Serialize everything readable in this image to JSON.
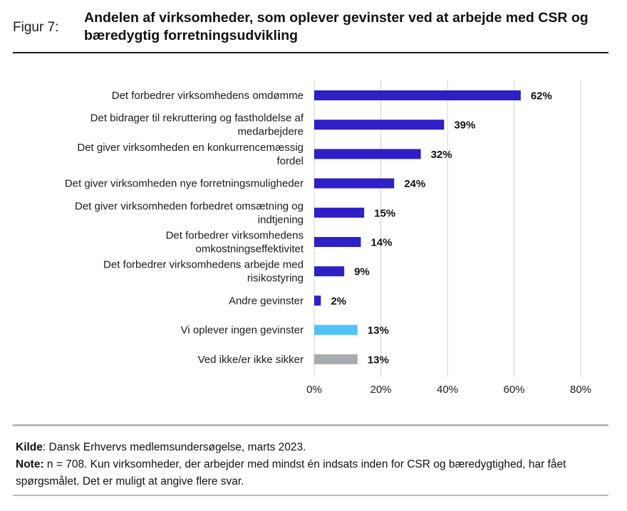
{
  "figure": {
    "label": "Figur 7:",
    "title": "Andelen af virksomheder, som oplever gevinster ved at arbejde med CSR og bæredygtig forretningsudvikling"
  },
  "chart_data": {
    "type": "bar",
    "orientation": "horizontal",
    "categories": [
      [
        "Det forbedrer virksomhedens omdømme"
      ],
      [
        "Det bidrager til rekruttering og fastholdelse af",
        "medarbejdere"
      ],
      [
        "Det giver virksomheden en konkurrencemæssig",
        "fordel"
      ],
      [
        "Det giver virksomheden nye forretningsmuligheder"
      ],
      [
        "Det giver virksomheden forbedret omsætning og",
        "indtjening"
      ],
      [
        "Det forbedrer virksomhedens",
        "omkostningseffektivitet"
      ],
      [
        "Det forbedrer virksomhedens arbejde med",
        "risikostyring"
      ],
      [
        "Andre gevinster"
      ],
      [
        "Vi oplever ingen gevinster"
      ],
      [
        "Ved ikke/er ikke sikker"
      ]
    ],
    "values": [
      62,
      39,
      32,
      24,
      15,
      14,
      9,
      2,
      13,
      13
    ],
    "value_labels": [
      "62%",
      "39%",
      "32%",
      "24%",
      "15%",
      "14%",
      "9%",
      "2%",
      "13%",
      "13%"
    ],
    "colors": [
      "#2e1fc6",
      "#2e1fc6",
      "#2e1fc6",
      "#2e1fc6",
      "#2e1fc6",
      "#2e1fc6",
      "#2e1fc6",
      "#2e1fc6",
      "#4fc3f7",
      "#a7abae"
    ],
    "xlim": [
      0,
      80
    ],
    "xticks": [
      0,
      20,
      40,
      60,
      80
    ],
    "xtick_labels": [
      "0%",
      "20%",
      "40%",
      "60%",
      "80%"
    ],
    "grid": "vertical",
    "legend": "none"
  },
  "notes": {
    "source_label": "Kilde",
    "source_text": ": Dansk Erhvervs medlemsundersøgelse, marts 2023.",
    "note_label": "Note:",
    "note_text": " n = 708. Kun virksomheder, der arbejder med mindst én indsats inden for CSR og bæredygtighed, har fået spørgsmålet. Det er muligt at angive flere svar."
  }
}
